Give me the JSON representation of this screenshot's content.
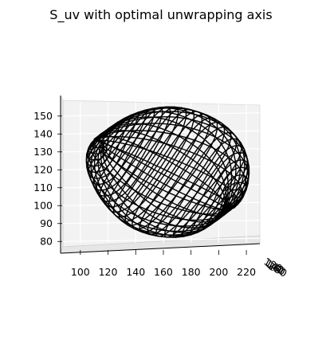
{
  "chart_data": {
    "type": "3d-wireframe",
    "title": "S_uv with optimal unwrapping axis",
    "x_ticks": [
      "100",
      "120",
      "140",
      "160",
      "180",
      "200",
      "220"
    ],
    "y_ticks": [
      "120",
      "140",
      "160",
      "180"
    ],
    "z_ticks": [
      "80",
      "90",
      "100",
      "110",
      "120",
      "130",
      "140",
      "150"
    ],
    "xlim": [
      88,
      228
    ],
    "zlim": [
      77,
      157
    ],
    "surface": {
      "mesh_color": "#000000",
      "u_samples": 30,
      "v_samples": 30,
      "center_x": 163,
      "center_z": 118,
      "radius_x": 55,
      "radius_z": 36
    },
    "pane_color": "#f2f2f2",
    "grid": true
  }
}
